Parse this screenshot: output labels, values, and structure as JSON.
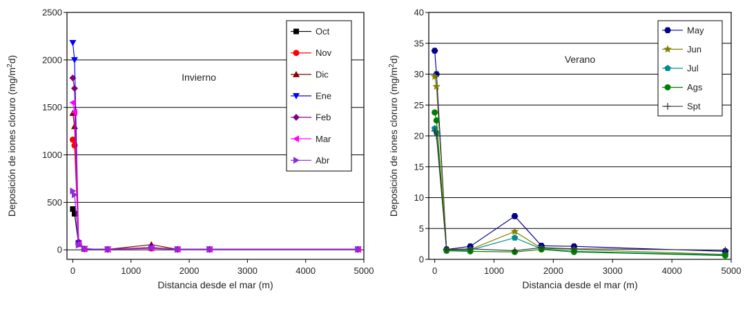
{
  "chart_data": [
    {
      "type": "line",
      "annotation": "Invierno",
      "xlabel": "Distancia desde el mar (m)",
      "ylabel": "Deposición de iones cloruro (mg/m2d)",
      "ylabel_main": "Deposición de iones cloruro (mg/m",
      "ylabel_sup": "2",
      "ylabel_end": "d)",
      "xlim": [
        -100,
        5000
      ],
      "ylim": [
        -100,
        2500
      ],
      "xticks": [
        0,
        1000,
        2000,
        3000,
        4000,
        5000
      ],
      "yticks": [
        0,
        500,
        1000,
        1500,
        2000,
        2500
      ],
      "grid": "horizontal",
      "legend": "top-right",
      "series": [
        {
          "name": "Oct",
          "color": "#000000",
          "marker": "square",
          "x": [
            0,
            30,
            100,
            200,
            600,
            1350,
            1800,
            2350,
            4900
          ],
          "y": [
            430,
            380,
            60,
            10,
            5,
            20,
            5,
            5,
            5
          ]
        },
        {
          "name": "Nov",
          "color": "#ff0000",
          "marker": "circle",
          "x": [
            0,
            30,
            100,
            200,
            600,
            1350,
            1800,
            2350,
            4900
          ],
          "y": [
            1160,
            1100,
            80,
            10,
            5,
            15,
            5,
            5,
            5
          ]
        },
        {
          "name": "Dic",
          "color": "#8b0000",
          "marker": "triangle-up",
          "x": [
            0,
            30,
            100,
            200,
            600,
            1350,
            1800,
            2350,
            4900
          ],
          "y": [
            1440,
            1300,
            90,
            10,
            5,
            55,
            5,
            5,
            5
          ]
        },
        {
          "name": "Ene",
          "color": "#0000ff",
          "marker": "triangle-down",
          "x": [
            0,
            30,
            100,
            200,
            600,
            1350,
            1800,
            2350,
            4900
          ],
          "y": [
            2180,
            2000,
            70,
            10,
            5,
            25,
            5,
            5,
            5
          ]
        },
        {
          "name": "Feb",
          "color": "#800080",
          "marker": "diamond",
          "x": [
            0,
            30,
            100,
            200,
            600,
            1350,
            1800,
            2350,
            4900
          ],
          "y": [
            1810,
            1700,
            60,
            10,
            5,
            25,
            5,
            5,
            5
          ]
        },
        {
          "name": "Mar",
          "color": "#ff00ff",
          "marker": "triangle-left",
          "x": [
            0,
            30,
            100,
            200,
            600,
            1350,
            1800,
            2350,
            4900
          ],
          "y": [
            1550,
            1450,
            60,
            10,
            5,
            20,
            5,
            5,
            5
          ]
        },
        {
          "name": "Abr",
          "color": "#8a2be2",
          "marker": "triangle-right",
          "x": [
            0,
            30,
            100,
            200,
            600,
            1350,
            1800,
            2350,
            4900
          ],
          "y": [
            620,
            580,
            50,
            10,
            5,
            20,
            5,
            5,
            5
          ]
        }
      ]
    },
    {
      "type": "line",
      "annotation": "Verano",
      "xlabel": "Distancia desde el mar (m)",
      "ylabel": "Deposición de iones cloruro (mg/m2d)",
      "ylabel_main": "Deposición de iones cloruro (mg/m",
      "ylabel_sup": "2",
      "ylabel_end": "d)",
      "xlim": [
        -100,
        5000
      ],
      "ylim": [
        0,
        40
      ],
      "xticks": [
        0,
        1000,
        2000,
        3000,
        4000,
        5000
      ],
      "yticks": [
        0,
        5,
        10,
        15,
        20,
        25,
        30,
        35,
        40
      ],
      "grid": "horizontal",
      "legend": "top-right",
      "series": [
        {
          "name": "May",
          "color": "#00008b",
          "marker": "hexagon",
          "x": [
            0,
            30,
            200,
            600,
            1350,
            1800,
            2350,
            4900
          ],
          "y": [
            33.8,
            30.0,
            1.6,
            2.1,
            7.0,
            2.2,
            2.1,
            1.3
          ]
        },
        {
          "name": "Jun",
          "color": "#808000",
          "marker": "star",
          "x": [
            0,
            30,
            200,
            600,
            1350,
            1800,
            2350,
            4900
          ],
          "y": [
            29.6,
            28.0,
            1.5,
            1.6,
            4.5,
            1.8,
            1.6,
            0.8
          ]
        },
        {
          "name": "Jul",
          "color": "#008b8b",
          "marker": "pentagon",
          "x": [
            0,
            30,
            200,
            600,
            1350,
            1800,
            2350,
            4900
          ],
          "y": [
            21.2,
            20.5,
            1.4,
            1.5,
            3.5,
            1.7,
            1.3,
            0.7
          ]
        },
        {
          "name": "Ags",
          "color": "#008000",
          "marker": "circle",
          "x": [
            0,
            30,
            200,
            600,
            1350,
            1800,
            2350,
            4900
          ],
          "y": [
            23.8,
            22.5,
            1.4,
            1.3,
            1.2,
            1.6,
            1.2,
            0.6
          ]
        },
        {
          "name": "Spt",
          "color": "#333333",
          "marker": "plus",
          "x": [
            0,
            30,
            200,
            600,
            1350,
            1800,
            2350,
            4900
          ],
          "y": [
            20.8,
            20.0,
            1.6,
            1.7,
            1.4,
            1.9,
            1.7,
            1.5
          ]
        }
      ]
    }
  ]
}
